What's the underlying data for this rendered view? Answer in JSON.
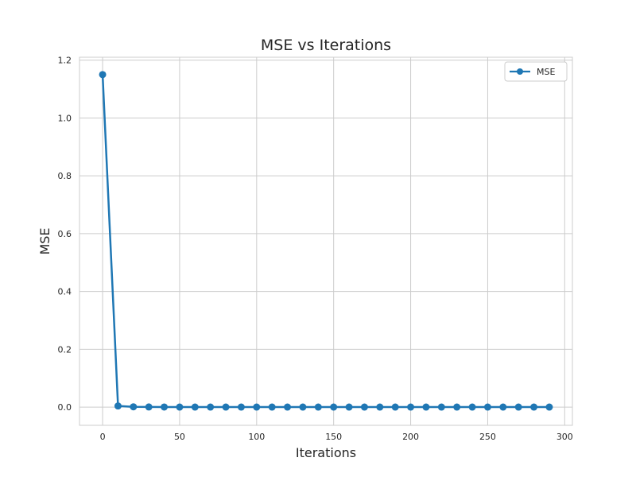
{
  "chart_data": {
    "type": "line",
    "title": "MSE vs Iterations",
    "xlabel": "Iterations",
    "ylabel": "MSE",
    "xlim": [
      -15,
      305
    ],
    "ylim": [
      -0.063,
      1.21
    ],
    "xticks": [
      0,
      50,
      100,
      150,
      200,
      250,
      300
    ],
    "xtick_labels": [
      "0",
      "50",
      "100",
      "150",
      "200",
      "250",
      "300"
    ],
    "yticks": [
      0.0,
      0.2,
      0.4,
      0.6,
      0.8,
      1.0,
      1.2
    ],
    "ytick_labels": [
      "0.0",
      "0.2",
      "0.4",
      "0.6",
      "0.8",
      "1.0",
      "1.2"
    ],
    "grid": true,
    "legend_position": "top-right",
    "series": [
      {
        "name": "MSE",
        "color": "#1f77b4",
        "marker": "circle",
        "x": [
          0,
          10,
          20,
          30,
          40,
          50,
          60,
          70,
          80,
          90,
          100,
          110,
          120,
          130,
          140,
          150,
          160,
          170,
          180,
          190,
          200,
          210,
          220,
          230,
          240,
          250,
          260,
          270,
          280,
          290
        ],
        "y": [
          1.15,
          0.004,
          0.001,
          0.0005,
          0.0003,
          0.0002,
          0.0001,
          0.0001,
          0.0001,
          0.0001,
          0.0001,
          0.0001,
          0.0001,
          0.0001,
          0.0001,
          0.0001,
          0.0001,
          0.0001,
          0.0001,
          0.0001,
          0.0001,
          0.0001,
          0.0001,
          0.0001,
          0.0001,
          0.0001,
          0.0001,
          0.0001,
          0.0001,
          0.0001
        ]
      }
    ]
  }
}
